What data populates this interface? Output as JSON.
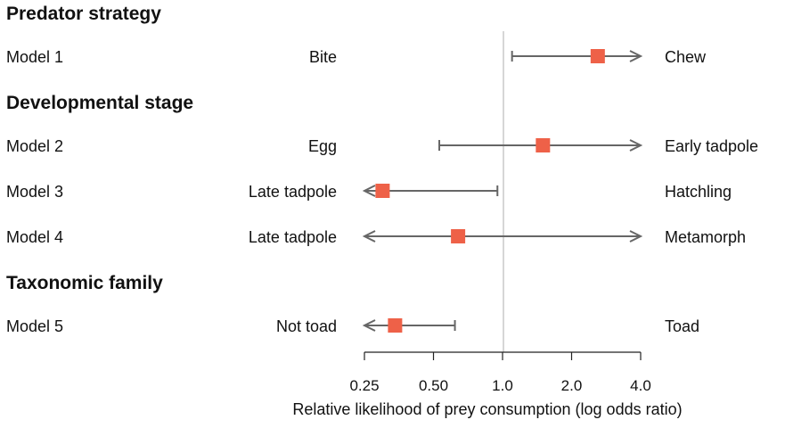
{
  "chart_data": {
    "type": "forest",
    "xlabel": "Relative likelihood of prey consumption (log odds ratio)",
    "xscale": "log2",
    "xlim": [
      0.25,
      4.0
    ],
    "x_ticks": [
      "0.25",
      "0.50",
      "1.0",
      "2.0",
      "4.0"
    ],
    "reference_line": 1.0,
    "marker_color": "#ee6148",
    "line_color": "#666666",
    "groups": [
      {
        "title": "Predator strategy",
        "models": [
          {
            "label": "Model 1",
            "left": "Bite",
            "right": "Chew",
            "estimate": 2.6,
            "ci_low": 1.1,
            "ci_high": 4.0,
            "low_arrow": false,
            "high_arrow": true
          }
        ]
      },
      {
        "title": "Developmental stage",
        "models": [
          {
            "label": "Model 2",
            "left": "Egg",
            "right": "Early tadpole",
            "estimate": 1.5,
            "ci_low": 0.53,
            "ci_high": 4.0,
            "low_arrow": false,
            "high_arrow": true
          },
          {
            "label": "Model 3",
            "left": "Late tadpole",
            "right": "Hatchling",
            "estimate": 0.3,
            "ci_low": 0.25,
            "ci_high": 0.95,
            "low_arrow": true,
            "high_arrow": false
          },
          {
            "label": "Model 4",
            "left": "Late tadpole",
            "right": "Metamorph",
            "estimate": 0.64,
            "ci_low": 0.25,
            "ci_high": 4.0,
            "low_arrow": true,
            "high_arrow": true
          }
        ]
      },
      {
        "title": "Taxonomic family",
        "models": [
          {
            "label": "Model 5",
            "left": "Not toad",
            "right": "Toad",
            "estimate": 0.34,
            "ci_low": 0.25,
            "ci_high": 0.62,
            "low_arrow": true,
            "high_arrow": false
          }
        ]
      }
    ]
  }
}
